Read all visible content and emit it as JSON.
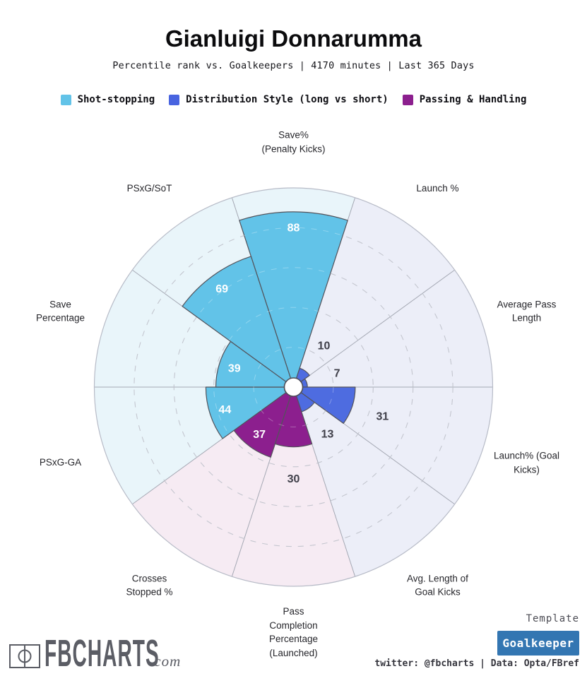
{
  "header": {
    "title": "Gianluigi Donnarumma",
    "subtitle": "Percentile rank vs. Goalkeepers | 4170 minutes | Last 365 Days"
  },
  "legend": [
    {
      "label": "Shot-stopping",
      "color": "#62c3e8"
    },
    {
      "label": "Distribution Style (long vs short)",
      "color": "#4864e0"
    },
    {
      "label": "Passing & Handling",
      "color": "#8c1f8e"
    }
  ],
  "chart_data": {
    "type": "pizza-polar-bar",
    "units": "percentile rank (0-100)",
    "rlim": [
      0,
      100
    ],
    "grid_rings": [
      20,
      40,
      60,
      80
    ],
    "groups": {
      "shot_stopping": {
        "name": "Shot-stopping",
        "fill": "#62c3e8",
        "bg": "#e9f5fa"
      },
      "distribution": {
        "name": "Distribution Style (long vs short)",
        "fill": "#4e6ce0",
        "bg": "#eceef8"
      },
      "passing": {
        "name": "Passing & Handling",
        "fill": "#8c1f8e",
        "bg": "#f6ebf3"
      }
    },
    "slices": [
      {
        "label": "Save%\n(Penalty Kicks)",
        "value": 88,
        "group": "shot_stopping"
      },
      {
        "label": "Launch %",
        "value": 10,
        "group": "distribution"
      },
      {
        "label": "Average Pass\nLength",
        "value": 7,
        "group": "distribution"
      },
      {
        "label": "Launch% (Goal\nKicks)",
        "value": 31,
        "group": "distribution"
      },
      {
        "label": "Avg. Length of\nGoal Kicks",
        "value": 13,
        "group": "distribution"
      },
      {
        "label": "Pass\nCompletion\nPercentage\n(Launched)",
        "value": 30,
        "group": "passing"
      },
      {
        "label": "Crosses\nStopped %",
        "value": 37,
        "group": "passing"
      },
      {
        "label": "PSxG-GA",
        "value": 44,
        "group": "shot_stopping"
      },
      {
        "label": "Save\nPercentage",
        "value": 39,
        "group": "shot_stopping"
      },
      {
        "label": "PSxG/SoT",
        "value": 69,
        "group": "shot_stopping"
      }
    ]
  },
  "footer": {
    "logo_text": "FBCHARTS",
    "logo_suffix": ".com",
    "template_label": "Template",
    "template_value": "Goalkeeper",
    "credit": "twitter: @fbcharts | Data: Opta/FBref"
  }
}
